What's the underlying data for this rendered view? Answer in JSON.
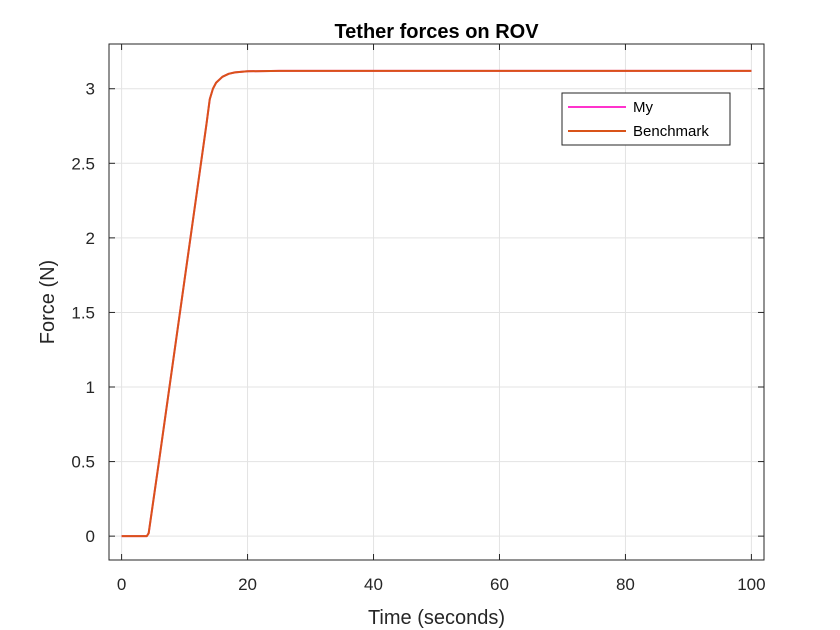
{
  "chart_data": {
    "type": "line",
    "title": "Tether forces on ROV",
    "xlabel": "Time (seconds)",
    "ylabel": "Force (N)",
    "xlim": [
      -2,
      102
    ],
    "ylim": [
      -0.16,
      3.3
    ],
    "xticks": [
      0,
      20,
      40,
      60,
      80,
      100
    ],
    "xtick_labels": [
      "0",
      "20",
      "40",
      "60",
      "80",
      "100"
    ],
    "yticks": [
      0,
      0.5,
      1,
      1.5,
      2,
      2.5,
      3
    ],
    "ytick_labels": [
      "0",
      "0.5",
      "1",
      "1.5",
      "2",
      "2.5",
      "3"
    ],
    "grid": true,
    "legend_position": "top-right",
    "series": [
      {
        "name": "My",
        "color": "#ff33cc",
        "x": [
          0,
          4,
          4.3,
          6,
          8,
          10,
          12,
          13.5,
          14,
          14.5,
          15,
          16,
          17,
          18,
          20,
          25,
          30,
          40,
          50,
          60,
          70,
          80,
          90,
          100
        ],
        "y": [
          0,
          0,
          0.02,
          0.52,
          1.12,
          1.72,
          2.32,
          2.77,
          2.93,
          3.0,
          3.04,
          3.08,
          3.1,
          3.11,
          3.117,
          3.12,
          3.12,
          3.12,
          3.12,
          3.12,
          3.12,
          3.12,
          3.12,
          3.12
        ]
      },
      {
        "name": "Benchmark",
        "color": "#d95319",
        "x": [
          0,
          4,
          4.3,
          6,
          8,
          10,
          12,
          13.5,
          14,
          14.5,
          15,
          16,
          17,
          18,
          20,
          25,
          30,
          40,
          50,
          60,
          70,
          80,
          90,
          100
        ],
        "y": [
          0,
          0,
          0.02,
          0.52,
          1.12,
          1.72,
          2.32,
          2.77,
          2.93,
          3.0,
          3.04,
          3.08,
          3.1,
          3.11,
          3.117,
          3.12,
          3.12,
          3.12,
          3.12,
          3.12,
          3.12,
          3.12,
          3.12,
          3.12
        ]
      }
    ]
  }
}
